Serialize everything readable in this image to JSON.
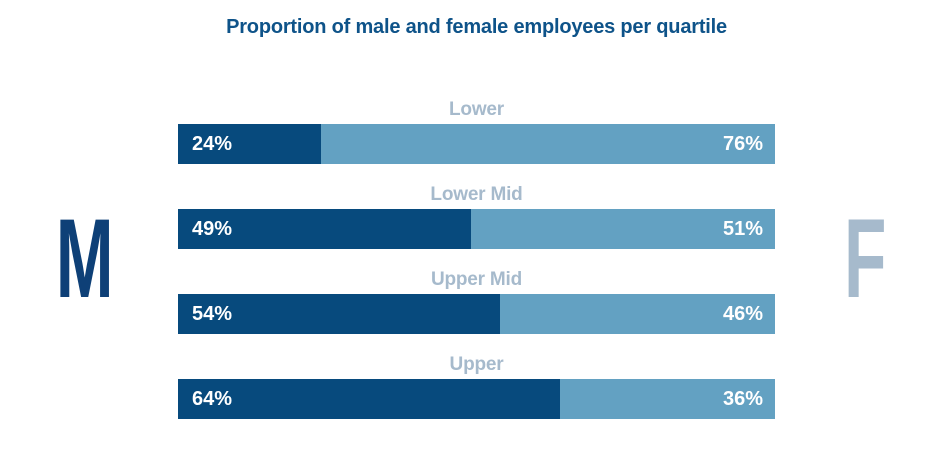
{
  "letters": {
    "male": "M",
    "female": "F"
  },
  "colors": {
    "background": "#ffffff",
    "title": "#0e5389",
    "male_segment": "#074a7d",
    "female_segment": "#63a1c2",
    "category_label": "#a6bacc",
    "value_label": "#ffffff",
    "m_letter": "#0e4077",
    "f_letter": "#a6bacc"
  },
  "chart_data": {
    "type": "bar",
    "orientation": "horizontal",
    "stacked": true,
    "title": "Proportion of male and female employees per quartile",
    "categories": [
      "Lower",
      "Lower Mid",
      "Upper Mid",
      "Upper"
    ],
    "series": [
      {
        "name": "M",
        "color": "#074a7d",
        "values": [
          24,
          49,
          54,
          64
        ]
      },
      {
        "name": "F",
        "color": "#63a1c2",
        "values": [
          76,
          51,
          46,
          36
        ]
      }
    ],
    "value_labels": [
      [
        "24%",
        "49%",
        "54%",
        "64%"
      ],
      [
        "76%",
        "51%",
        "46%",
        "36%"
      ]
    ],
    "value_format": "percent",
    "xlim": [
      0,
      100
    ],
    "grid": false,
    "legend_position": "none",
    "category_label_position": "above-center"
  }
}
